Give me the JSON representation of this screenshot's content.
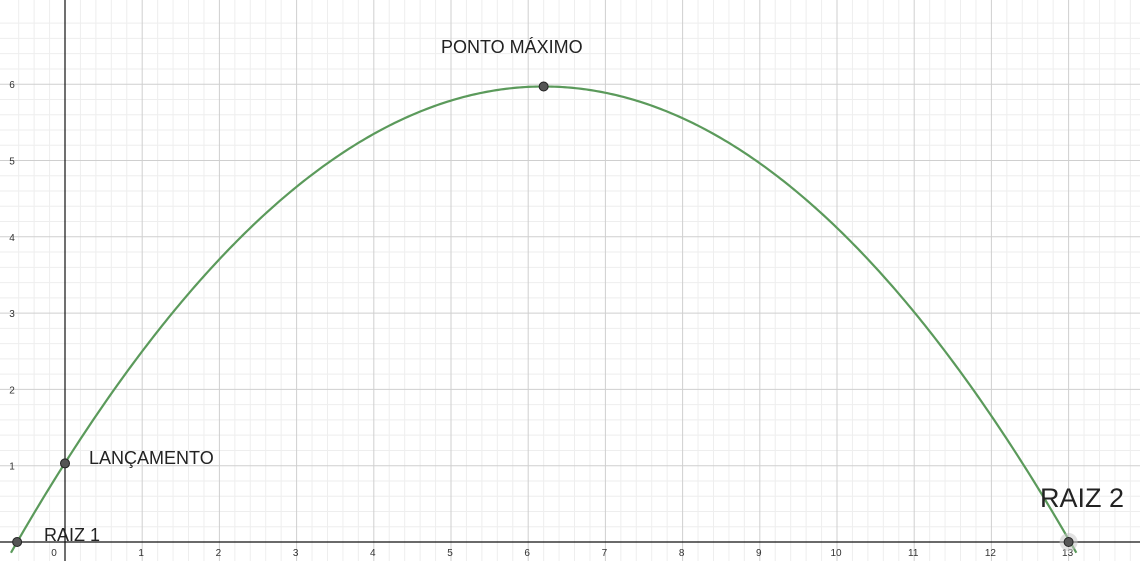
{
  "chart_data": {
    "type": "line",
    "title": "",
    "xlabel": "",
    "ylabel": "",
    "xlim": [
      -0.7,
      14.0
    ],
    "ylim": [
      -0.15,
      6.9
    ],
    "grid": true,
    "x_ticks": [
      "0",
      "1",
      "2",
      "3",
      "4",
      "5",
      "6",
      "7",
      "8",
      "9",
      "10",
      "11",
      "12",
      "13",
      "1"
    ],
    "y_ticks": [
      "1",
      "2",
      "3",
      "4",
      "5",
      "6"
    ],
    "series": [
      {
        "color": "#5b9a5b",
        "function": "quadratic",
        "vertex": [
          6.2,
          5.97
        ],
        "through": [
          -0.62,
          0
        ],
        "x_range": [
          -0.7,
          13.1
        ]
      }
    ],
    "points": [
      {
        "label": "RAIZ 1",
        "x": -0.62,
        "y": 0
      },
      {
        "label": "LANÇAMENTO",
        "x": 0.0,
        "y": 1.03
      },
      {
        "label": "PONTO MÁXIMO",
        "x": 6.2,
        "y": 5.97
      },
      {
        "label": "RAIZ 2",
        "x": 13.0,
        "y": 0
      }
    ],
    "colors": {
      "curve": "#5b9a5b",
      "point_fill": "#555555",
      "point_stroke": "#222222"
    }
  }
}
